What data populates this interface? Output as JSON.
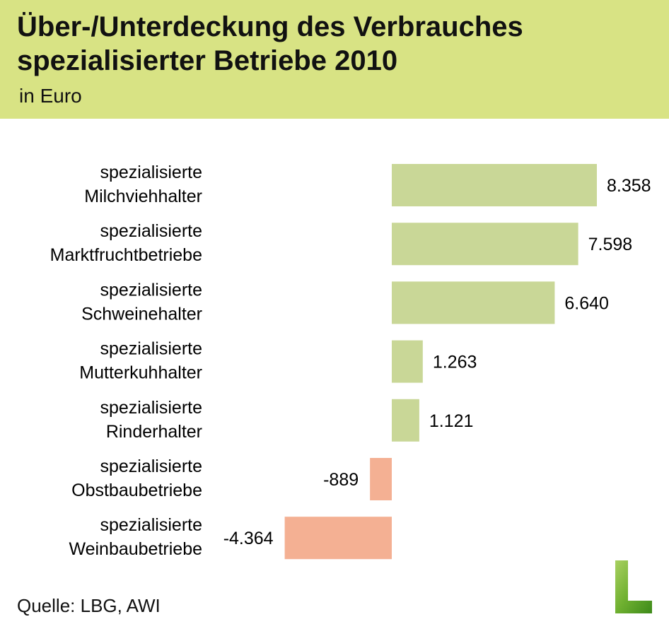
{
  "header": {
    "title_line1": "Über-/Unterdeckung des Verbrauches",
    "title_line2": "spezialisierter Betriebe 2010",
    "subtitle": "in Euro"
  },
  "source": "Quelle: LBG, AWI",
  "colors": {
    "header": "#d8e384",
    "positive": "#c9d797",
    "negative": "#f4b093"
  },
  "chart_data": {
    "type": "bar",
    "orientation": "horizontal",
    "title": "Über-/Unterdeckung des Verbrauches spezialisierter Betriebe 2010",
    "unit": "in Euro",
    "categories": [
      [
        "spezialisierte",
        "Milchviehhalter"
      ],
      [
        "spezialisierte",
        "Marktfruchtbetriebe"
      ],
      [
        "spezialisierte",
        "Schweinehalter"
      ],
      [
        "spezialisierte",
        "Mutterkuhhalter"
      ],
      [
        "spezialisierte",
        "Rinderhalter"
      ],
      [
        "spezialisierte",
        "Obstbaubetriebe"
      ],
      [
        "spezialisierte",
        "Weinbaubetriebe"
      ]
    ],
    "values": [
      8358,
      7598,
      6640,
      1263,
      1121,
      -889,
      -4364
    ],
    "labels": [
      "8.358",
      "7.598",
      "6.640",
      "1.263",
      "1.121",
      "-889",
      "-4.364"
    ]
  }
}
